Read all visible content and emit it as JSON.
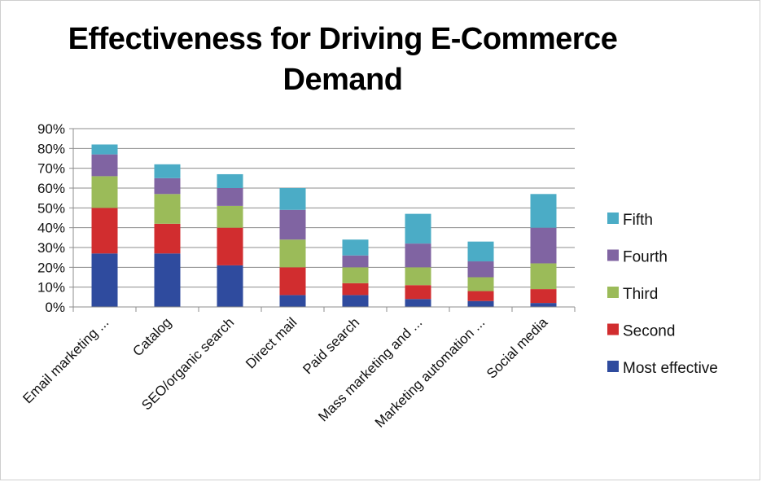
{
  "chart_data": {
    "type": "bar",
    "stacked": true,
    "title": "Effectiveness for Driving E-Commerce Demand",
    "xlabel": "",
    "ylabel": "",
    "ylim": [
      0,
      90
    ],
    "yticks": [
      "0%",
      "10%",
      "20%",
      "30%",
      "40%",
      "50%",
      "60%",
      "70%",
      "80%",
      "90%"
    ],
    "grid": true,
    "legend_position": "right",
    "categories": [
      "Email marketing ...",
      "Catalog",
      "SEO/organic search",
      "Direct mail",
      "Paid search",
      "Mass marketing and ...",
      "Marketing automation ...",
      "Social media"
    ],
    "series": [
      {
        "name": "Most effective",
        "color": "#2f4b9e",
        "values": [
          27,
          27,
          21,
          6,
          6,
          4,
          3,
          2
        ]
      },
      {
        "name": "Second",
        "color": "#d12d2f",
        "values": [
          23,
          15,
          19,
          14,
          6,
          7,
          5,
          7
        ]
      },
      {
        "name": "Third",
        "color": "#9bbb59",
        "values": [
          16,
          15,
          11,
          14,
          8,
          9,
          7,
          13
        ]
      },
      {
        "name": "Fourth",
        "color": "#8064a2",
        "values": [
          11,
          8,
          9,
          15,
          6,
          12,
          8,
          18
        ]
      },
      {
        "name": "Fifth",
        "color": "#4bacc6",
        "values": [
          5,
          7,
          7,
          11,
          8,
          15,
          10,
          17
        ]
      }
    ]
  }
}
